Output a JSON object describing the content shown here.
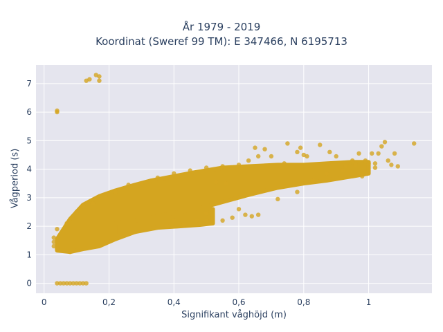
{
  "chart_data": {
    "type": "scatter",
    "title_line1": "År 1979 - 2019",
    "title_line2": "Koordinat (Sweref 99 TM): E 347466, N 6195713",
    "xlabel": "Signifikant våghöjd (m)",
    "ylabel": "Vågperiod (s)",
    "xlim": [
      -0.025,
      1.195
    ],
    "ylim": [
      -0.35,
      7.65
    ],
    "x_ticks": [
      {
        "value": 0,
        "label": "0"
      },
      {
        "value": 0.2,
        "label": "0,2"
      },
      {
        "value": 0.4,
        "label": "0,4"
      },
      {
        "value": 0.6,
        "label": "0,6"
      },
      {
        "value": 0.8,
        "label": "0,8"
      },
      {
        "value": 1.0,
        "label": "1"
      }
    ],
    "y_ticks": [
      {
        "value": 0,
        "label": "0"
      },
      {
        "value": 1,
        "label": "1"
      },
      {
        "value": 2,
        "label": "2"
      },
      {
        "value": 3,
        "label": "3"
      },
      {
        "value": 4,
        "label": "4"
      },
      {
        "value": 5,
        "label": "5"
      },
      {
        "value": 6,
        "label": "6"
      },
      {
        "value": 7,
        "label": "7"
      }
    ],
    "grid": true,
    "marker_color": "#d4a520",
    "plot_bg": "#e5e5ee",
    "series": [
      {
        "points": [
          [
            0.04,
            6.05
          ],
          [
            0.04,
            6.0
          ],
          [
            0.13,
            7.1
          ],
          [
            0.14,
            7.15
          ],
          [
            0.16,
            7.3
          ],
          [
            0.17,
            7.25
          ],
          [
            0.17,
            7.1
          ],
          [
            0.04,
            0.0
          ],
          [
            0.05,
            0.0
          ],
          [
            0.06,
            0.0
          ],
          [
            0.07,
            0.0
          ],
          [
            0.08,
            0.0
          ],
          [
            0.09,
            0.0
          ],
          [
            0.1,
            0.0
          ],
          [
            0.11,
            0.0
          ],
          [
            0.12,
            0.0
          ],
          [
            0.13,
            0.0
          ],
          [
            0.03,
            1.6
          ],
          [
            0.03,
            1.45
          ],
          [
            0.03,
            1.3
          ],
          [
            0.04,
            1.9
          ],
          [
            0.04,
            1.2
          ],
          [
            0.07,
            2.1
          ],
          [
            0.08,
            1.1
          ],
          [
            0.1,
            2.5
          ],
          [
            0.12,
            2.7
          ],
          [
            0.15,
            2.8
          ],
          [
            0.19,
            3.0
          ],
          [
            0.22,
            3.2
          ],
          [
            0.26,
            3.45
          ],
          [
            0.3,
            3.5
          ],
          [
            0.35,
            3.7
          ],
          [
            0.4,
            3.85
          ],
          [
            0.45,
            3.95
          ],
          [
            0.5,
            4.05
          ],
          [
            0.55,
            4.1
          ],
          [
            0.6,
            4.15
          ],
          [
            0.63,
            4.3
          ],
          [
            0.65,
            4.75
          ],
          [
            0.66,
            4.45
          ],
          [
            0.68,
            4.7
          ],
          [
            0.7,
            4.45
          ],
          [
            0.74,
            4.2
          ],
          [
            0.75,
            4.9
          ],
          [
            0.78,
            4.6
          ],
          [
            0.79,
            4.75
          ],
          [
            0.8,
            4.5
          ],
          [
            0.81,
            4.45
          ],
          [
            0.85,
            4.85
          ],
          [
            0.88,
            4.6
          ],
          [
            0.9,
            4.45
          ],
          [
            0.93,
            4.1
          ],
          [
            0.95,
            4.3
          ],
          [
            0.96,
            4.15
          ],
          [
            0.97,
            4.55
          ],
          [
            0.99,
            4.3
          ],
          [
            1.0,
            4.2
          ],
          [
            1.01,
            4.55
          ],
          [
            1.02,
            4.2
          ],
          [
            1.03,
            4.55
          ],
          [
            1.04,
            4.8
          ],
          [
            1.05,
            4.95
          ],
          [
            1.06,
            4.3
          ],
          [
            1.07,
            4.15
          ],
          [
            1.08,
            4.55
          ],
          [
            1.09,
            4.1
          ],
          [
            1.14,
            4.9
          ],
          [
            0.53,
            3.55
          ],
          [
            0.56,
            3.5
          ],
          [
            0.6,
            2.6
          ],
          [
            0.62,
            2.4
          ],
          [
            0.64,
            2.35
          ],
          [
            0.66,
            2.4
          ],
          [
            0.72,
            2.95
          ],
          [
            0.78,
            3.2
          ],
          [
            0.83,
            3.6
          ],
          [
            0.87,
            3.85
          ],
          [
            0.92,
            3.95
          ],
          [
            0.98,
            3.75
          ],
          [
            1.02,
            4.05
          ],
          [
            0.4,
            2.2
          ],
          [
            0.43,
            2.05
          ],
          [
            0.47,
            2.2
          ],
          [
            0.5,
            2.2
          ],
          [
            0.55,
            2.2
          ],
          [
            0.58,
            2.3
          ],
          [
            0.5,
            2.45
          ],
          [
            0.38,
            2.0
          ]
        ],
        "ribbons": [
          {
            "upper": [
              [
                0.04,
                1.55
              ],
              [
                0.08,
                2.25
              ],
              [
                0.12,
                2.75
              ],
              [
                0.17,
                3.05
              ],
              [
                0.22,
                3.25
              ],
              [
                0.28,
                3.45
              ],
              [
                0.33,
                3.6
              ],
              [
                0.4,
                3.75
              ],
              [
                0.47,
                3.9
              ],
              [
                0.55,
                4.05
              ],
              [
                0.63,
                4.1
              ],
              [
                0.72,
                4.15
              ],
              [
                0.8,
                4.15
              ],
              [
                0.87,
                4.2
              ],
              [
                0.95,
                4.25
              ],
              [
                1.0,
                4.25
              ]
            ],
            "lower": [
              [
                0.04,
                1.15
              ],
              [
                0.08,
                1.1
              ],
              [
                0.12,
                1.2
              ],
              [
                0.17,
                1.3
              ],
              [
                0.22,
                1.55
              ],
              [
                0.28,
                1.8
              ],
              [
                0.33,
                2.05
              ],
              [
                0.4,
                2.35
              ],
              [
                0.47,
                2.6
              ],
              [
                0.55,
                2.85
              ],
              [
                0.63,
                3.1
              ],
              [
                0.72,
                3.35
              ],
              [
                0.8,
                3.5
              ],
              [
                0.87,
                3.6
              ],
              [
                0.95,
                3.75
              ],
              [
                1.0,
                3.85
              ]
            ]
          },
          {
            "upper": [
              [
                0.22,
                2.1
              ],
              [
                0.28,
                2.2
              ],
              [
                0.35,
                2.35
              ],
              [
                0.42,
                2.5
              ],
              [
                0.48,
                2.65
              ],
              [
                0.52,
                2.6
              ]
            ],
            "lower": [
              [
                0.22,
                1.65
              ],
              [
                0.28,
                1.8
              ],
              [
                0.35,
                1.95
              ],
              [
                0.42,
                2.0
              ],
              [
                0.48,
                2.05
              ],
              [
                0.52,
                2.1
              ]
            ]
          }
        ]
      }
    ]
  }
}
